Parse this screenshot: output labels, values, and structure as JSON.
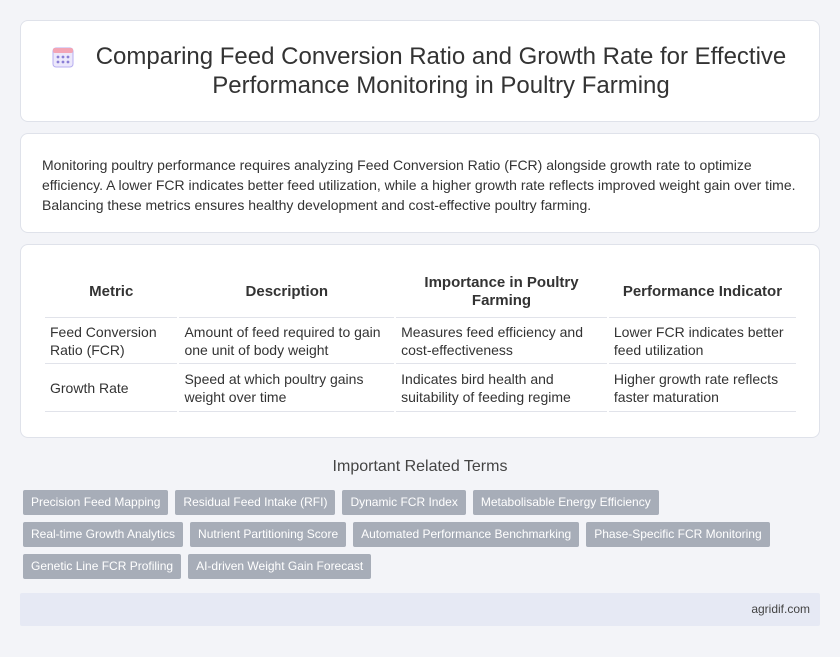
{
  "header": {
    "icon": "calendar-icon",
    "title": "Comparing Feed Conversion Ratio and Growth Rate for Effective Performance Monitoring in Poultry Farming"
  },
  "intro": {
    "text": "Monitoring poultry performance requires analyzing Feed Conversion Ratio (FCR) alongside growth rate to optimize efficiency. A lower FCR indicates better feed utilization, while a higher growth rate reflects improved weight gain over time. Balancing these metrics ensures healthy development and cost-effective poultry farming."
  },
  "table": {
    "headers": [
      "Metric",
      "Description",
      "Importance in Poultry Farming",
      "Performance Indicator"
    ],
    "rows": [
      [
        "Feed Conversion Ratio (FCR)",
        "Amount of feed required to gain one unit of body weight",
        "Measures feed efficiency and cost-effectiveness",
        "Lower FCR indicates better feed utilization"
      ],
      [
        "Growth Rate",
        "Speed at which poultry gains weight over time",
        "Indicates bird health and suitability of feeding regime",
        "Higher growth rate reflects faster maturation"
      ]
    ]
  },
  "related": {
    "title": "Important Related Terms",
    "terms": [
      "Precision Feed Mapping",
      "Residual Feed Intake (RFI)",
      "Dynamic FCR Index",
      "Metabolisable Energy Efficiency",
      "Real-time Growth Analytics",
      "Nutrient Partitioning Score",
      "Automated Performance Benchmarking",
      "Phase-Specific FCR Monitoring",
      "Genetic Line FCR Profiling",
      "AI-driven Weight Gain Forecast"
    ]
  },
  "footer": {
    "site": "agridif.com"
  },
  "colors": {
    "background": "#f3f4f8",
    "tag": "#a7adb8",
    "footer": "#e6e9f4",
    "icon": "#8b7fd6"
  }
}
